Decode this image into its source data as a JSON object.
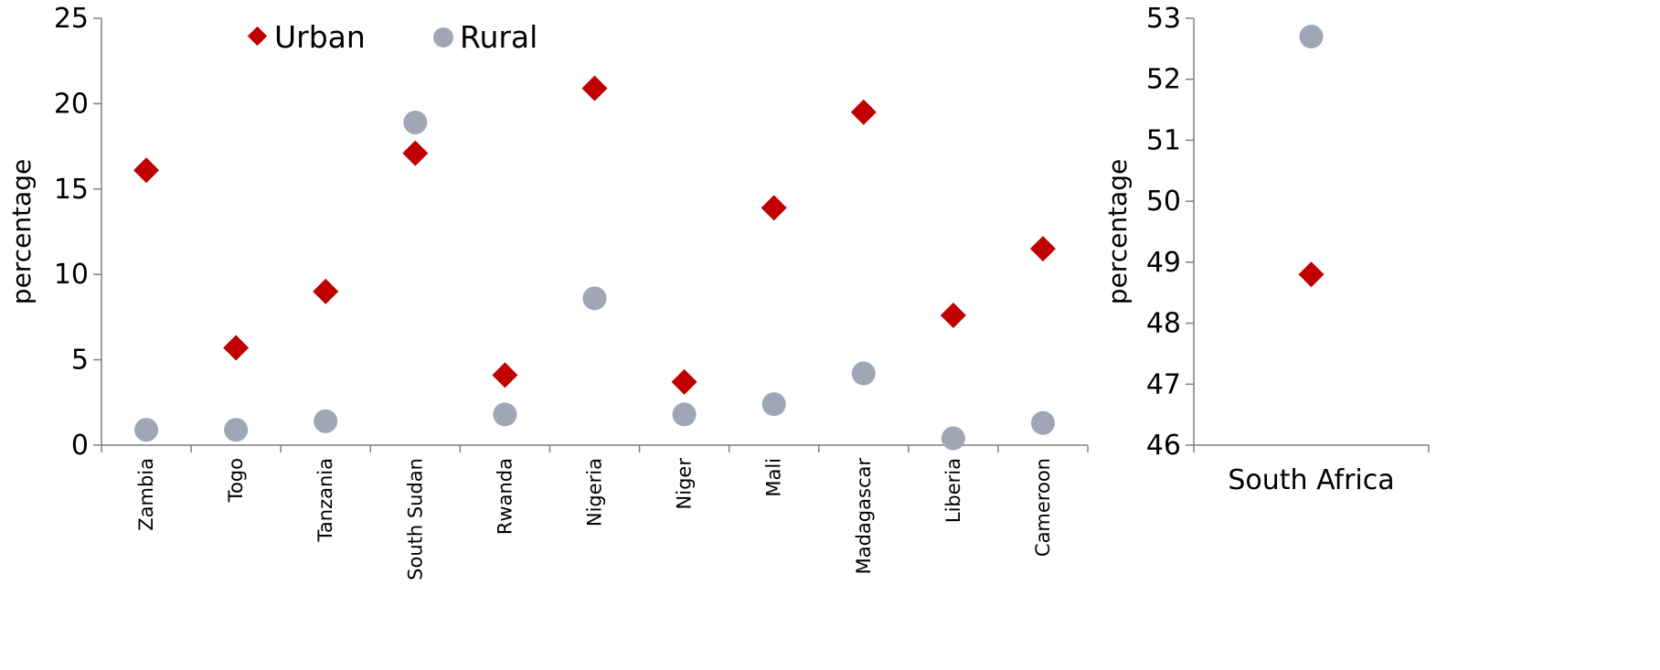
{
  "colors": {
    "urban": "#c00000",
    "rural": "#a0a6b5",
    "axis": "#7f7f7f"
  },
  "legend": {
    "urban_label": "Urban",
    "rural_label": "Rural",
    "position": "top-left"
  },
  "chart_data": [
    {
      "type": "scatter",
      "title": "",
      "xlabel": "",
      "ylabel": "percentage",
      "ylim": [
        0,
        25
      ],
      "yticks": [
        0,
        5,
        10,
        15,
        20,
        25
      ],
      "grid": false,
      "categories": [
        "Zambia",
        "Togo",
        "Tanzania",
        "South Sudan",
        "Rwanda",
        "Nigeria",
        "Niger",
        "Mali",
        "Madagascar",
        "Liberia",
        "Cameroon"
      ],
      "series": [
        {
          "name": "Urban",
          "marker": "diamond",
          "values": [
            16.1,
            5.7,
            9.0,
            17.1,
            4.1,
            20.9,
            3.7,
            13.9,
            19.5,
            7.6,
            11.5
          ]
        },
        {
          "name": "Rural",
          "marker": "circle",
          "values": [
            0.9,
            0.9,
            1.4,
            18.9,
            1.8,
            8.6,
            1.8,
            2.4,
            4.2,
            0.4,
            1.3
          ]
        }
      ]
    },
    {
      "type": "scatter",
      "title": "",
      "xlabel": "",
      "ylabel": "percentage",
      "ylim": [
        46,
        53
      ],
      "yticks": [
        46,
        47,
        48,
        49,
        50,
        51,
        52,
        53
      ],
      "grid": false,
      "categories": [
        "South Africa"
      ],
      "series": [
        {
          "name": "Urban",
          "marker": "diamond",
          "values": [
            48.8
          ]
        },
        {
          "name": "Rural",
          "marker": "circle",
          "values": [
            52.7
          ]
        }
      ]
    }
  ]
}
